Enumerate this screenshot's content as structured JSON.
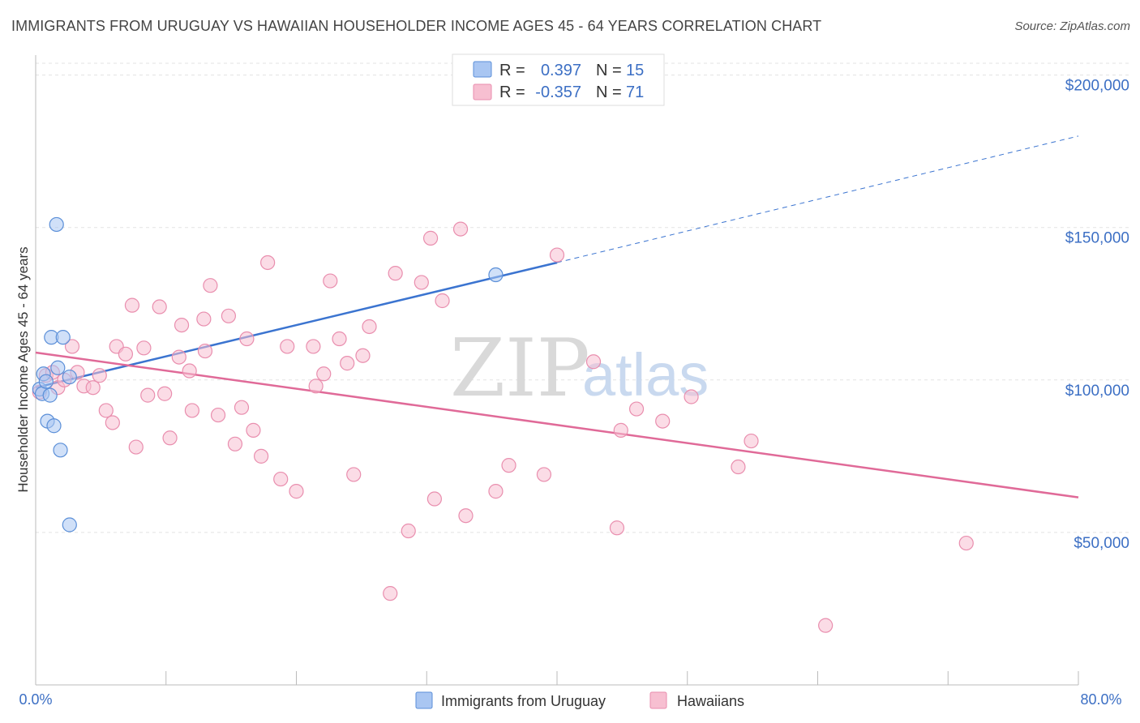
{
  "title": "IMMIGRANTS FROM URUGUAY VS HAWAIIAN HOUSEHOLDER INCOME AGES 45 - 64 YEARS CORRELATION CHART",
  "source": "Source: ZipAtlas.com",
  "watermark": {
    "zip": "ZIP",
    "atlas": "atlas"
  },
  "legend_top": [
    {
      "r_label": "R =",
      "r_value": "0.397",
      "n_label": "N =",
      "n_value": "15",
      "color": "#a9c6f2",
      "stroke": "#6f9be0"
    },
    {
      "r_label": "R =",
      "r_value": "-0.357",
      "n_label": "N =",
      "n_value": "71",
      "color": "#f7bfd1",
      "stroke": "#e98eae"
    }
  ],
  "chart_data": {
    "type": "scatter",
    "title": "IMMIGRANTS FROM URUGUAY VS HAWAIIAN HOUSEHOLDER INCOME AGES 45 - 64 YEARS CORRELATION CHART",
    "xlabel": "",
    "ylabel": "Householder Income Ages 45 - 64 years",
    "xlim": [
      0,
      80
    ],
    "ylim": [
      0,
      210000
    ],
    "x_tick_labels": [
      "0.0%",
      "80.0%"
    ],
    "y_ticks": [
      50000,
      100000,
      150000,
      200000
    ],
    "y_tick_labels": [
      "$50,000",
      "$100,000",
      "$150,000",
      "$200,000"
    ],
    "series": [
      {
        "name": "Immigrants from Uruguay",
        "color": "#a9c6f2",
        "stroke": "#5b8fd8",
        "line_color": "#3b74d0",
        "trend": {
          "x0": 0,
          "y0": 97500,
          "x1": 40,
          "y1": 138500,
          "x_ext": 80,
          "y_ext": 180000
        },
        "points": [
          [
            0.3,
            97000
          ],
          [
            0.5,
            95500
          ],
          [
            0.6,
            102000
          ],
          [
            0.8,
            99500
          ],
          [
            0.9,
            86500
          ],
          [
            1.1,
            95000
          ],
          [
            1.2,
            114000
          ],
          [
            1.4,
            85000
          ],
          [
            1.6,
            151000
          ],
          [
            1.7,
            104000
          ],
          [
            1.9,
            77000
          ],
          [
            2.1,
            114000
          ],
          [
            2.6,
            101000
          ],
          [
            2.6,
            52500
          ],
          [
            35.3,
            134500
          ]
        ]
      },
      {
        "name": "Hawaiians",
        "color": "#f7bfd1",
        "stroke": "#e98eae",
        "line_color": "#e06a98",
        "trend": {
          "x0": 0,
          "y0": 109000,
          "x1": 80,
          "y1": 61500
        },
        "points": [
          [
            0.3,
            96000
          ],
          [
            0.8,
            101500
          ],
          [
            1.3,
            102500
          ],
          [
            1.7,
            97500
          ],
          [
            2.2,
            100000
          ],
          [
            2.8,
            111000
          ],
          [
            3.2,
            102500
          ],
          [
            3.7,
            98000
          ],
          [
            4.4,
            97500
          ],
          [
            4.9,
            101500
          ],
          [
            5.4,
            90000
          ],
          [
            5.9,
            86000
          ],
          [
            6.2,
            111000
          ],
          [
            6.9,
            108500
          ],
          [
            7.4,
            124500
          ],
          [
            7.7,
            78000
          ],
          [
            8.3,
            110500
          ],
          [
            8.6,
            95000
          ],
          [
            9.5,
            124000
          ],
          [
            9.9,
            95500
          ],
          [
            10.3,
            81000
          ],
          [
            11.0,
            107500
          ],
          [
            11.2,
            118000
          ],
          [
            11.8,
            103000
          ],
          [
            12.0,
            90000
          ],
          [
            12.9,
            120000
          ],
          [
            13.0,
            109500
          ],
          [
            13.4,
            131000
          ],
          [
            14.0,
            88500
          ],
          [
            14.8,
            121000
          ],
          [
            15.3,
            79000
          ],
          [
            15.8,
            91000
          ],
          [
            16.2,
            113500
          ],
          [
            16.7,
            83500
          ],
          [
            17.3,
            75000
          ],
          [
            17.8,
            138500
          ],
          [
            18.8,
            67500
          ],
          [
            19.3,
            111000
          ],
          [
            20.0,
            63500
          ],
          [
            21.3,
            111000
          ],
          [
            21.5,
            98000
          ],
          [
            22.1,
            102000
          ],
          [
            22.6,
            132500
          ],
          [
            23.3,
            113500
          ],
          [
            23.9,
            105500
          ],
          [
            24.4,
            69000
          ],
          [
            25.1,
            108000
          ],
          [
            25.6,
            117500
          ],
          [
            27.2,
            30000
          ],
          [
            27.6,
            135000
          ],
          [
            28.6,
            50500
          ],
          [
            29.6,
            132000
          ],
          [
            30.3,
            146500
          ],
          [
            30.6,
            61000
          ],
          [
            31.2,
            126000
          ],
          [
            32.6,
            149500
          ],
          [
            33.0,
            55500
          ],
          [
            35.3,
            63500
          ],
          [
            36.3,
            72000
          ],
          [
            39.0,
            69000
          ],
          [
            40.0,
            141000
          ],
          [
            42.8,
            106000
          ],
          [
            44.6,
            51500
          ],
          [
            44.9,
            83500
          ],
          [
            46.1,
            90500
          ],
          [
            48.1,
            86500
          ],
          [
            50.3,
            94500
          ],
          [
            53.9,
            71500
          ],
          [
            54.9,
            80000
          ],
          [
            60.6,
            19500
          ],
          [
            71.4,
            46500
          ]
        ]
      }
    ]
  }
}
